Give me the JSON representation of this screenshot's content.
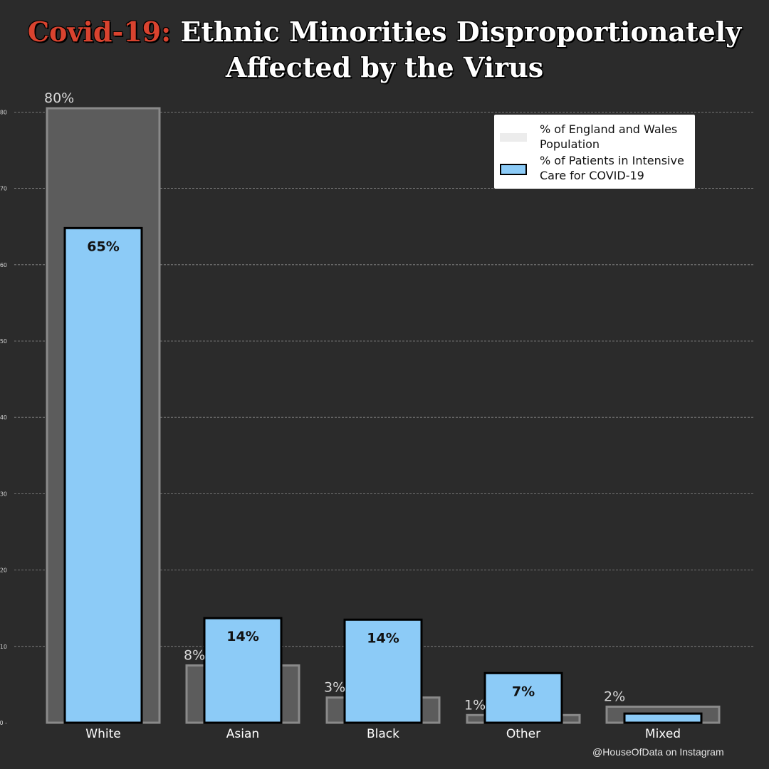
{
  "title": {
    "accent": "Covid-19:",
    "line1": "Ethnic Minorities Disproportionately",
    "line2": "Affected by the Virus"
  },
  "colors": {
    "background": "#2b2b2b",
    "population_fill": "#5c5c5c",
    "population_edge": "#8a8a8a",
    "icu_fill": "#8ccbf7",
    "icu_edge": "#000000",
    "accent": "#d9432f"
  },
  "legend": {
    "population": "% of England and Wales Population",
    "icu": "% of Patients in Intensive Care for COVID-19"
  },
  "credit": "@HouseOfData on Instagram",
  "chart_data": {
    "type": "bar",
    "title": "Covid-19: Ethnic Minorities Disproportionately Affected by the Virus",
    "xlabel": "",
    "ylabel": "",
    "ylim": [
      0,
      80
    ],
    "yticks": [
      0,
      10,
      20,
      30,
      40,
      50,
      60,
      70,
      80
    ],
    "grid": true,
    "legend_position": "top-right",
    "categories": [
      "White",
      "Asian",
      "Black",
      "Other",
      "Mixed"
    ],
    "series": [
      {
        "name": "% of England and Wales Population",
        "values": [
          80.5,
          7.5,
          3.3,
          1.0,
          2.1
        ],
        "labels": [
          "80%",
          "8%",
          "3%",
          "1%",
          "2%"
        ]
      },
      {
        "name": "% of Patients in Intensive Care for COVID-19",
        "values": [
          64.8,
          13.7,
          13.5,
          6.5,
          1.2
        ],
        "labels": [
          "65%",
          "14%",
          "14%",
          "7%",
          ""
        ]
      }
    ]
  }
}
